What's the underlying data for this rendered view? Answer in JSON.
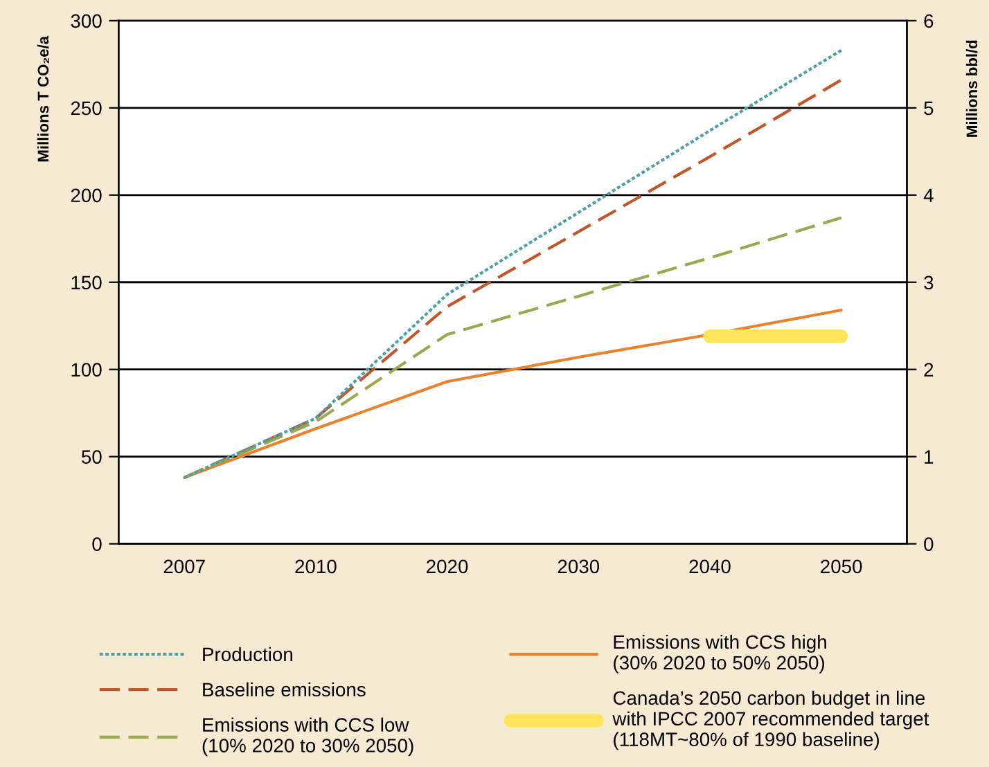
{
  "chart_data": {
    "type": "line",
    "categories": [
      "2007",
      "2010",
      "2020",
      "2030",
      "2040",
      "2050"
    ],
    "ylabel": "Millions T CO₂e/a",
    "y2label": "Millions bbl/d",
    "ylim": [
      0,
      300
    ],
    "yticks": [
      0,
      50,
      100,
      150,
      200,
      250,
      300
    ],
    "y2lim": [
      0,
      6
    ],
    "y2ticks": [
      0,
      1,
      2,
      3,
      4,
      5,
      6
    ],
    "grid": "y",
    "legend": "bottom",
    "marker": "none",
    "series": [
      {
        "name": "Production",
        "color": "#4f9fa5",
        "line_style": "dotted",
        "values": [
          38,
          72,
          143,
          190,
          237,
          283
        ]
      },
      {
        "name": "Baseline emissions",
        "color": "#c0562a",
        "line_style": "dashed",
        "values": [
          38,
          72,
          136,
          179,
          222,
          266
        ]
      },
      {
        "name": "Emissions with CCS low\n(10% 2020 to 30% 2050)",
        "color": "#9aa84e",
        "line_style": "dashed",
        "values": [
          38,
          70,
          120,
          142,
          164,
          187
        ]
      },
      {
        "name": "Emissions with CCS high\n(30% 2020 to 50% 2050)",
        "color": "#e8822e",
        "line_style": "solid",
        "values": [
          38,
          66,
          93,
          107,
          120,
          134
        ]
      },
      {
        "name": "Canada’s 2050 carbon budget in line\nwith IPCC 2007 recommended target\n(118MT~80% of 1990 baseline)",
        "color": "#ffe45c",
        "line_style": "solid",
        "values": [
          null,
          null,
          null,
          null,
          119,
          119
        ]
      }
    ]
  }
}
